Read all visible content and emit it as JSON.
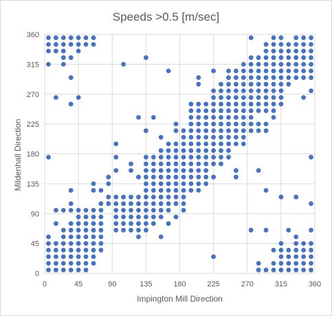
{
  "chart_data": {
    "type": "scatter",
    "title": "Speeds >0.5 [m/sec]",
    "xlabel": "Impington Mill Direction",
    "ylabel": "Mildenhall Direction",
    "xlim": [
      0,
      360
    ],
    "ylim": [
      0,
      360
    ],
    "xticks": [
      0,
      45,
      90,
      135,
      180,
      225,
      270,
      315,
      360
    ],
    "yticks": [
      0,
      45,
      90,
      135,
      180,
      225,
      270,
      315,
      360
    ],
    "grid": true,
    "marker_color": "#4472C4",
    "points": [
      [
        5,
        355
      ],
      [
        15,
        355
      ],
      [
        25,
        355
      ],
      [
        35,
        355
      ],
      [
        45,
        355
      ],
      [
        55,
        355
      ],
      [
        65,
        355
      ],
      [
        5,
        345
      ],
      [
        15,
        345
      ],
      [
        25,
        345
      ],
      [
        35,
        345
      ],
      [
        45,
        345
      ],
      [
        55,
        345
      ],
      [
        65,
        345
      ],
      [
        5,
        335
      ],
      [
        15,
        335
      ],
      [
        25,
        335
      ],
      [
        45,
        335
      ],
      [
        25,
        325
      ],
      [
        35,
        325
      ],
      [
        5,
        315
      ],
      [
        25,
        315
      ],
      [
        105,
        315
      ],
      [
        135,
        325
      ],
      [
        165,
        305
      ],
      [
        35,
        295
      ],
      [
        15,
        265
      ],
      [
        45,
        265
      ],
      [
        35,
        255
      ],
      [
        5,
        175
      ],
      [
        5,
        55
      ],
      [
        5,
        45
      ],
      [
        5,
        35
      ],
      [
        5,
        25
      ],
      [
        5,
        15
      ],
      [
        5,
        5
      ],
      [
        15,
        45
      ],
      [
        15,
        35
      ],
      [
        15,
        25
      ],
      [
        15,
        15
      ],
      [
        15,
        5
      ],
      [
        25,
        65
      ],
      [
        25,
        55
      ],
      [
        25,
        45
      ],
      [
        25,
        35
      ],
      [
        25,
        25
      ],
      [
        25,
        15
      ],
      [
        25,
        5
      ],
      [
        35,
        75
      ],
      [
        35,
        65
      ],
      [
        35,
        55
      ],
      [
        35,
        45
      ],
      [
        35,
        35
      ],
      [
        35,
        25
      ],
      [
        35,
        15
      ],
      [
        35,
        5
      ],
      [
        45,
        85
      ],
      [
        45,
        75
      ],
      [
        45,
        65
      ],
      [
        45,
        55
      ],
      [
        45,
        45
      ],
      [
        45,
        35
      ],
      [
        45,
        25
      ],
      [
        45,
        15
      ],
      [
        45,
        5
      ],
      [
        55,
        95
      ],
      [
        55,
        85
      ],
      [
        55,
        75
      ],
      [
        55,
        65
      ],
      [
        55,
        55
      ],
      [
        55,
        45
      ],
      [
        55,
        35
      ],
      [
        55,
        25
      ],
      [
        55,
        15
      ],
      [
        55,
        5
      ],
      [
        65,
        95
      ],
      [
        65,
        85
      ],
      [
        65,
        75
      ],
      [
        65,
        65
      ],
      [
        65,
        55
      ],
      [
        65,
        45
      ],
      [
        65,
        35
      ],
      [
        65,
        25
      ],
      [
        65,
        15
      ],
      [
        75,
        95
      ],
      [
        75,
        85
      ],
      [
        75,
        75
      ],
      [
        75,
        65
      ],
      [
        75,
        55
      ],
      [
        75,
        45
      ],
      [
        75,
        35
      ],
      [
        15,
        95
      ],
      [
        15,
        75
      ],
      [
        25,
        95
      ],
      [
        35,
        95
      ],
      [
        35,
        125
      ],
      [
        45,
        95
      ],
      [
        35,
        105
      ],
      [
        65,
        135
      ],
      [
        65,
        125
      ],
      [
        75,
        125
      ],
      [
        75,
        105
      ],
      [
        85,
        145
      ],
      [
        85,
        135
      ],
      [
        85,
        115
      ],
      [
        85,
        105
      ],
      [
        95,
        115
      ],
      [
        95,
        105
      ],
      [
        95,
        95
      ],
      [
        95,
        85
      ],
      [
        95,
        75
      ],
      [
        95,
        65
      ],
      [
        95,
        195
      ],
      [
        95,
        175
      ],
      [
        95,
        155
      ],
      [
        105,
        115
      ],
      [
        105,
        105
      ],
      [
        105,
        95
      ],
      [
        105,
        85
      ],
      [
        105,
        75
      ],
      [
        105,
        65
      ],
      [
        115,
        115
      ],
      [
        115,
        105
      ],
      [
        115,
        95
      ],
      [
        115,
        85
      ],
      [
        115,
        75
      ],
      [
        115,
        65
      ],
      [
        115,
        165
      ],
      [
        115,
        155
      ],
      [
        125,
        145
      ],
      [
        125,
        115
      ],
      [
        125,
        105
      ],
      [
        125,
        95
      ],
      [
        125,
        85
      ],
      [
        125,
        75
      ],
      [
        125,
        65
      ],
      [
        125,
        55
      ],
      [
        125,
        235
      ],
      [
        135,
        175
      ],
      [
        135,
        165
      ],
      [
        135,
        155
      ],
      [
        135,
        145
      ],
      [
        135,
        135
      ],
      [
        135,
        125
      ],
      [
        135,
        115
      ],
      [
        135,
        105
      ],
      [
        135,
        95
      ],
      [
        135,
        85
      ],
      [
        135,
        75
      ],
      [
        135,
        65
      ],
      [
        135,
        215
      ],
      [
        145,
        175
      ],
      [
        145,
        165
      ],
      [
        145,
        155
      ],
      [
        145,
        145
      ],
      [
        145,
        135
      ],
      [
        145,
        125
      ],
      [
        145,
        115
      ],
      [
        145,
        105
      ],
      [
        145,
        95
      ],
      [
        145,
        85
      ],
      [
        145,
        75
      ],
      [
        145,
        235
      ],
      [
        155,
        185
      ],
      [
        155,
        175
      ],
      [
        155,
        165
      ],
      [
        155,
        155
      ],
      [
        155,
        145
      ],
      [
        155,
        135
      ],
      [
        155,
        125
      ],
      [
        155,
        115
      ],
      [
        155,
        105
      ],
      [
        155,
        95
      ],
      [
        155,
        85
      ],
      [
        155,
        55
      ],
      [
        155,
        205
      ],
      [
        165,
        195
      ],
      [
        165,
        185
      ],
      [
        165,
        175
      ],
      [
        165,
        165
      ],
      [
        165,
        155
      ],
      [
        165,
        145
      ],
      [
        165,
        135
      ],
      [
        165,
        125
      ],
      [
        165,
        115
      ],
      [
        165,
        105
      ],
      [
        165,
        95
      ],
      [
        165,
        75
      ],
      [
        175,
        225
      ],
      [
        175,
        215
      ],
      [
        175,
        195
      ],
      [
        175,
        185
      ],
      [
        175,
        175
      ],
      [
        175,
        165
      ],
      [
        175,
        155
      ],
      [
        175,
        145
      ],
      [
        175,
        135
      ],
      [
        175,
        125
      ],
      [
        175,
        115
      ],
      [
        175,
        105
      ],
      [
        175,
        85
      ],
      [
        185,
        215
      ],
      [
        185,
        205
      ],
      [
        185,
        195
      ],
      [
        185,
        185
      ],
      [
        185,
        175
      ],
      [
        185,
        165
      ],
      [
        185,
        155
      ],
      [
        185,
        145
      ],
      [
        185,
        135
      ],
      [
        185,
        125
      ],
      [
        185,
        115
      ],
      [
        185,
        105
      ],
      [
        185,
        95
      ],
      [
        195,
        255
      ],
      [
        195,
        245
      ],
      [
        195,
        235
      ],
      [
        195,
        225
      ],
      [
        195,
        215
      ],
      [
        195,
        205
      ],
      [
        195,
        195
      ],
      [
        195,
        185
      ],
      [
        195,
        175
      ],
      [
        195,
        165
      ],
      [
        195,
        155
      ],
      [
        195,
        145
      ],
      [
        195,
        135
      ],
      [
        195,
        125
      ],
      [
        205,
        255
      ],
      [
        205,
        245
      ],
      [
        205,
        235
      ],
      [
        205,
        225
      ],
      [
        205,
        215
      ],
      [
        205,
        205
      ],
      [
        205,
        195
      ],
      [
        205,
        185
      ],
      [
        205,
        175
      ],
      [
        205,
        165
      ],
      [
        205,
        155
      ],
      [
        205,
        145
      ],
      [
        205,
        135
      ],
      [
        205,
        125
      ],
      [
        205,
        285
      ],
      [
        205,
        295
      ],
      [
        215,
        255
      ],
      [
        215,
        245
      ],
      [
        215,
        235
      ],
      [
        215,
        225
      ],
      [
        215,
        215
      ],
      [
        215,
        205
      ],
      [
        215,
        195
      ],
      [
        215,
        185
      ],
      [
        215,
        175
      ],
      [
        215,
        165
      ],
      [
        215,
        155
      ],
      [
        215,
        145
      ],
      [
        215,
        135
      ],
      [
        225,
        275
      ],
      [
        225,
        265
      ],
      [
        225,
        255
      ],
      [
        225,
        245
      ],
      [
        225,
        235
      ],
      [
        225,
        225
      ],
      [
        225,
        215
      ],
      [
        225,
        205
      ],
      [
        225,
        195
      ],
      [
        225,
        185
      ],
      [
        225,
        175
      ],
      [
        225,
        165
      ],
      [
        225,
        145
      ],
      [
        225,
        305
      ],
      [
        225,
        25
      ],
      [
        235,
        285
      ],
      [
        235,
        275
      ],
      [
        235,
        265
      ],
      [
        235,
        255
      ],
      [
        235,
        245
      ],
      [
        235,
        235
      ],
      [
        235,
        225
      ],
      [
        235,
        215
      ],
      [
        235,
        205
      ],
      [
        235,
        195
      ],
      [
        235,
        185
      ],
      [
        235,
        175
      ],
      [
        235,
        165
      ],
      [
        245,
        295
      ],
      [
        245,
        285
      ],
      [
        245,
        275
      ],
      [
        245,
        265
      ],
      [
        245,
        255
      ],
      [
        245,
        245
      ],
      [
        245,
        235
      ],
      [
        245,
        225
      ],
      [
        245,
        215
      ],
      [
        245,
        205
      ],
      [
        245,
        195
      ],
      [
        245,
        185
      ],
      [
        245,
        305
      ],
      [
        255,
        305
      ],
      [
        255,
        295
      ],
      [
        255,
        285
      ],
      [
        255,
        275
      ],
      [
        255,
        265
      ],
      [
        255,
        255
      ],
      [
        255,
        245
      ],
      [
        255,
        235
      ],
      [
        255,
        225
      ],
      [
        255,
        215
      ],
      [
        255,
        205
      ],
      [
        255,
        195
      ],
      [
        255,
        145
      ],
      [
        265,
        315
      ],
      [
        265,
        305
      ],
      [
        265,
        295
      ],
      [
        265,
        285
      ],
      [
        265,
        275
      ],
      [
        265,
        265
      ],
      [
        265,
        255
      ],
      [
        265,
        245
      ],
      [
        265,
        235
      ],
      [
        265,
        225
      ],
      [
        265,
        215
      ],
      [
        265,
        205
      ],
      [
        265,
        195
      ],
      [
        275,
        325
      ],
      [
        275,
        315
      ],
      [
        275,
        305
      ],
      [
        275,
        295
      ],
      [
        275,
        285
      ],
      [
        275,
        275
      ],
      [
        275,
        265
      ],
      [
        275,
        255
      ],
      [
        275,
        245
      ],
      [
        275,
        235
      ],
      [
        275,
        225
      ],
      [
        275,
        215
      ],
      [
        275,
        355
      ],
      [
        275,
        65
      ],
      [
        285,
        325
      ],
      [
        285,
        315
      ],
      [
        285,
        305
      ],
      [
        285,
        295
      ],
      [
        285,
        285
      ],
      [
        285,
        275
      ],
      [
        285,
        265
      ],
      [
        285,
        255
      ],
      [
        285,
        245
      ],
      [
        285,
        225
      ],
      [
        285,
        215
      ],
      [
        285,
        155
      ],
      [
        285,
        15
      ],
      [
        285,
        5
      ],
      [
        295,
        345
      ],
      [
        295,
        335
      ],
      [
        295,
        325
      ],
      [
        295,
        315
      ],
      [
        295,
        305
      ],
      [
        295,
        295
      ],
      [
        295,
        285
      ],
      [
        295,
        275
      ],
      [
        295,
        265
      ],
      [
        295,
        255
      ],
      [
        295,
        245
      ],
      [
        295,
        225
      ],
      [
        295,
        215
      ],
      [
        295,
        125
      ],
      [
        295,
        65
      ],
      [
        295,
        5
      ],
      [
        305,
        355
      ],
      [
        305,
        345
      ],
      [
        305,
        335
      ],
      [
        305,
        325
      ],
      [
        305,
        315
      ],
      [
        305,
        305
      ],
      [
        305,
        295
      ],
      [
        305,
        285
      ],
      [
        305,
        275
      ],
      [
        305,
        265
      ],
      [
        305,
        255
      ],
      [
        305,
        245
      ],
      [
        305,
        235
      ],
      [
        305,
        35
      ],
      [
        305,
        15
      ],
      [
        305,
        5
      ],
      [
        315,
        355
      ],
      [
        315,
        345
      ],
      [
        315,
        335
      ],
      [
        315,
        325
      ],
      [
        315,
        315
      ],
      [
        315,
        305
      ],
      [
        315,
        295
      ],
      [
        315,
        285
      ],
      [
        315,
        275
      ],
      [
        315,
        265
      ],
      [
        315,
        255
      ],
      [
        315,
        45
      ],
      [
        315,
        35
      ],
      [
        315,
        25
      ],
      [
        315,
        15
      ],
      [
        315,
        5
      ],
      [
        325,
        345
      ],
      [
        325,
        335
      ],
      [
        325,
        325
      ],
      [
        325,
        315
      ],
      [
        325,
        305
      ],
      [
        325,
        295
      ],
      [
        325,
        285
      ],
      [
        325,
        35
      ],
      [
        325,
        25
      ],
      [
        325,
        15
      ],
      [
        325,
        5
      ],
      [
        315,
        115
      ],
      [
        335,
        355
      ],
      [
        335,
        345
      ],
      [
        335,
        335
      ],
      [
        335,
        325
      ],
      [
        335,
        315
      ],
      [
        335,
        305
      ],
      [
        335,
        295
      ],
      [
        335,
        45
      ],
      [
        335,
        35
      ],
      [
        335,
        25
      ],
      [
        335,
        15
      ],
      [
        335,
        5
      ],
      [
        335,
        115
      ],
      [
        345,
        355
      ],
      [
        345,
        345
      ],
      [
        345,
        335
      ],
      [
        345,
        325
      ],
      [
        345,
        315
      ],
      [
        345,
        305
      ],
      [
        345,
        295
      ],
      [
        345,
        265
      ],
      [
        345,
        45
      ],
      [
        345,
        35
      ],
      [
        345,
        25
      ],
      [
        345,
        15
      ],
      [
        345,
        5
      ],
      [
        355,
        355
      ],
      [
        355,
        345
      ],
      [
        355,
        335
      ],
      [
        355,
        325
      ],
      [
        355,
        315
      ],
      [
        355,
        305
      ],
      [
        355,
        295
      ],
      [
        355,
        275
      ],
      [
        355,
        175
      ],
      [
        355,
        105
      ],
      [
        355,
        65
      ],
      [
        355,
        45
      ],
      [
        355,
        35
      ],
      [
        355,
        25
      ],
      [
        355,
        15
      ],
      [
        355,
        5
      ],
      [
        335,
        55
      ],
      [
        325,
        65
      ],
      [
        245,
        175
      ],
      [
        255,
        155
      ]
    ]
  }
}
